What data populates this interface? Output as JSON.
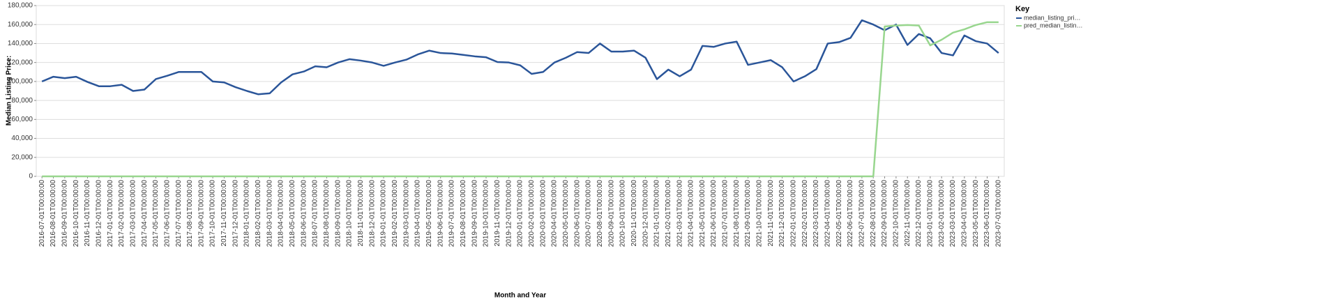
{
  "chart_data": {
    "type": "line",
    "x_label": "Month and Year",
    "y_label": "Median Listing Price:",
    "legend_title": "Key",
    "legend": "right",
    "grid": true,
    "categories": [
      "2016-07-01T00:00:00",
      "2016-08-01T00:00:00",
      "2016-09-01T00:00:00",
      "2016-10-01T00:00:00",
      "2016-11-01T00:00:00",
      "2016-12-01T00:00:00",
      "2017-01-01T00:00:00",
      "2017-02-01T00:00:00",
      "2017-03-01T00:00:00",
      "2017-04-01T00:00:00",
      "2017-05-01T00:00:00",
      "2017-06-01T00:00:00",
      "2017-07-01T00:00:00",
      "2017-08-01T00:00:00",
      "2017-09-01T00:00:00",
      "2017-10-01T00:00:00",
      "2017-11-01T00:00:00",
      "2017-12-01T00:00:00",
      "2018-01-01T00:00:00",
      "2018-02-01T00:00:00",
      "2018-03-01T00:00:00",
      "2018-04-01T00:00:00",
      "2018-05-01T00:00:00",
      "2018-06-01T00:00:00",
      "2018-07-01T00:00:00",
      "2018-08-01T00:00:00",
      "2018-09-01T00:00:00",
      "2018-10-01T00:00:00",
      "2018-11-01T00:00:00",
      "2018-12-01T00:00:00",
      "2019-01-01T00:00:00",
      "2019-02-01T00:00:00",
      "2019-03-01T00:00:00",
      "2019-04-01T00:00:00",
      "2019-05-01T00:00:00",
      "2019-06-01T00:00:00",
      "2019-07-01T00:00:00",
      "2019-08-01T00:00:00",
      "2019-09-01T00:00:00",
      "2019-10-01T00:00:00",
      "2019-11-01T00:00:00",
      "2019-12-01T00:00:00",
      "2020-01-01T00:00:00",
      "2020-02-01T00:00:00",
      "2020-03-01T00:00:00",
      "2020-04-01T00:00:00",
      "2020-05-01T00:00:00",
      "2020-06-01T00:00:00",
      "2020-07-01T00:00:00",
      "2020-08-01T00:00:00",
      "2020-09-01T00:00:00",
      "2020-10-01T00:00:00",
      "2020-11-01T00:00:00",
      "2020-12-01T00:00:00",
      "2021-01-01T00:00:00",
      "2021-02-01T00:00:00",
      "2021-03-01T00:00:00",
      "2021-04-01T00:00:00",
      "2021-05-01T00:00:00",
      "2021-06-01T00:00:00",
      "2021-07-01T00:00:00",
      "2021-08-01T00:00:00",
      "2021-09-01T00:00:00",
      "2021-10-01T00:00:00",
      "2021-11-01T00:00:00",
      "2021-12-01T00:00:00",
      "2022-01-01T00:00:00",
      "2022-02-01T00:00:00",
      "2022-03-01T00:00:00",
      "2022-04-01T00:00:00",
      "2022-05-01T00:00:00",
      "2022-06-01T00:00:00",
      "2022-07-01T00:00:00",
      "2022-08-01T00:00:00",
      "2022-09-01T00:00:00",
      "2022-10-01T00:00:00",
      "2022-11-01T00:00:00",
      "2022-12-01T00:00:00",
      "2023-01-01T00:00:00",
      "2023-02-01T00:00:00",
      "2023-03-01T00:00:00",
      "2023-04-01T00:00:00",
      "2023-05-01T00:00:00",
      "2023-06-01T00:00:00",
      "2023-07-01T00:00:00"
    ],
    "series": [
      {
        "name": "median_listing_pri…",
        "color": "#2a5599",
        "values": [
          100000,
          105000,
          103500,
          105000,
          99500,
          95000,
          95000,
          96500,
          90000,
          91500,
          102500,
          106000,
          110000,
          110000,
          110000,
          100000,
          99000,
          94000,
          90000,
          86500,
          87500,
          99000,
          107500,
          110500,
          116000,
          115000,
          120000,
          123500,
          122000,
          120000,
          116500,
          120000,
          123000,
          128500,
          132500,
          130000,
          129500,
          128000,
          126500,
          125500,
          120500,
          120000,
          117000,
          108000,
          110000,
          120000,
          125000,
          131000,
          130000,
          140000,
          131500,
          131500,
          132500,
          125000,
          102500,
          112500,
          105500,
          112500,
          137500,
          136500,
          140000,
          142000,
          117500,
          120000,
          122500,
          115000,
          100000,
          105500,
          113000,
          140000,
          141500,
          146000,
          164500,
          160000,
          154000,
          160000,
          138500,
          150000,
          145500,
          130000,
          127500,
          148500,
          142500,
          140000,
          130000
        ]
      },
      {
        "name": "pred_median_listin…",
        "color": "#98d68e",
        "values": [
          0,
          0,
          0,
          0,
          0,
          0,
          0,
          0,
          0,
          0,
          0,
          0,
          0,
          0,
          0,
          0,
          0,
          0,
          0,
          0,
          0,
          0,
          0,
          0,
          0,
          0,
          0,
          0,
          0,
          0,
          0,
          0,
          0,
          0,
          0,
          0,
          0,
          0,
          0,
          0,
          0,
          0,
          0,
          0,
          0,
          0,
          0,
          0,
          0,
          0,
          0,
          0,
          0,
          0,
          0,
          0,
          0,
          0,
          0,
          0,
          0,
          0,
          0,
          0,
          0,
          0,
          0,
          0,
          0,
          0,
          0,
          0,
          0,
          0,
          158000,
          159000,
          159500,
          159000,
          138000,
          144000,
          151500,
          155000,
          159500,
          162500,
          162500
        ]
      }
    ],
    "ylim": [
      0,
      180000
    ],
    "yticks": [
      0,
      {
        "value": 20000,
        "label": "20,000"
      },
      {
        "value": 40000,
        "label": "40,000"
      },
      {
        "value": 60000,
        "label": "60,000"
      },
      {
        "value": 80000,
        "label": "80,000"
      },
      {
        "value": 100000,
        "label": "100,000"
      },
      {
        "value": 120000,
        "label": "120,000"
      },
      {
        "value": 140000,
        "label": "140,000"
      },
      {
        "value": 160000,
        "label": "160,000"
      },
      {
        "value": 180000,
        "label": "180,000"
      }
    ]
  }
}
